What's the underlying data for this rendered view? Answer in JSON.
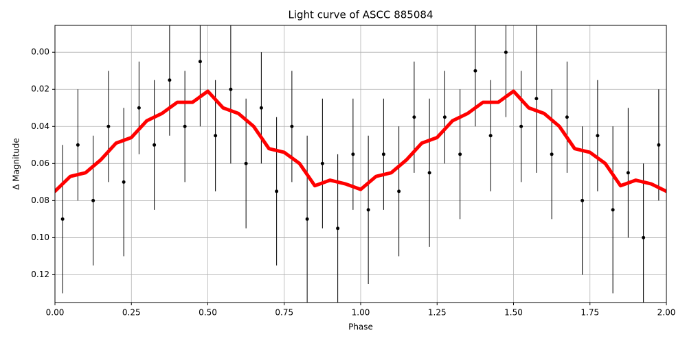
{
  "chart_data": {
    "type": "line",
    "title": "Light curve of ASCC 885084",
    "x_label": "Phase",
    "y_label": "Δ Magnitude",
    "xlim": [
      0,
      2
    ],
    "ylim": [
      -0.0145,
      0.135
    ],
    "y_inverted": true,
    "grid": true,
    "xticks": [
      {
        "value": 0,
        "label": "0.00"
      },
      {
        "value": 0.25,
        "label": "0.25"
      },
      {
        "value": 0.5,
        "label": "0.50"
      },
      {
        "value": 0.75,
        "label": "0.75"
      },
      {
        "value": 1,
        "label": "1.00"
      },
      {
        "value": 1.25,
        "label": "1.25"
      },
      {
        "value": 1.5,
        "label": "1.50"
      },
      {
        "value": 1.75,
        "label": "1.75"
      },
      {
        "value": 2,
        "label": "2.00"
      }
    ],
    "yticks": [
      {
        "value": 0,
        "label": "0.00"
      },
      {
        "value": 0.02,
        "label": "0.02"
      },
      {
        "value": 0.04,
        "label": "0.04"
      },
      {
        "value": 0.06,
        "label": "0.06"
      },
      {
        "value": 0.08,
        "label": "0.08"
      },
      {
        "value": 0.1,
        "label": "0.10"
      },
      {
        "value": 0.12,
        "label": "0.12"
      }
    ],
    "series": [
      {
        "kind": "errorbar",
        "color": "#000000",
        "x": [
          0.025,
          0.075,
          0.125,
          0.175,
          0.225,
          0.275,
          0.325,
          0.375,
          0.425,
          0.475,
          0.525,
          0.575,
          0.625,
          0.675,
          0.725,
          0.775,
          0.825,
          0.875,
          0.925,
          0.975,
          1.025,
          1.075,
          1.125,
          1.175,
          1.225,
          1.275,
          1.325,
          1.375,
          1.425,
          1.475,
          1.525,
          1.575,
          1.625,
          1.675,
          1.725,
          1.775,
          1.825,
          1.875,
          1.925,
          1.975
        ],
        "y": [
          0.09,
          0.05,
          0.08,
          0.04,
          0.07,
          0.03,
          0.05,
          0.015,
          0.04,
          0.005,
          0.045,
          0.02,
          0.06,
          0.03,
          0.075,
          0.04,
          0.09,
          0.06,
          0.095,
          0.055,
          0.085,
          0.055,
          0.075,
          0.035,
          0.065,
          0.035,
          0.055,
          0.01,
          0.045,
          0.0,
          0.04,
          0.025,
          0.055,
          0.035,
          0.08,
          0.045,
          0.085,
          0.065,
          0.1,
          0.05
        ],
        "err": [
          0.04,
          0.03,
          0.035,
          0.03,
          0.04,
          0.025,
          0.035,
          0.03,
          0.03,
          0.035,
          0.03,
          0.04,
          0.035,
          0.03,
          0.04,
          0.03,
          0.045,
          0.035,
          0.04,
          0.03,
          0.04,
          0.03,
          0.035,
          0.03,
          0.04,
          0.025,
          0.035,
          0.03,
          0.03,
          0.035,
          0.03,
          0.04,
          0.035,
          0.03,
          0.04,
          0.03,
          0.045,
          0.035,
          0.04,
          0.03
        ]
      },
      {
        "kind": "line",
        "color": "#ff0000",
        "x": [
          0,
          0.05,
          0.1,
          0.15,
          0.2,
          0.25,
          0.3,
          0.35,
          0.4,
          0.45,
          0.5,
          0.55,
          0.6,
          0.65,
          0.7,
          0.75,
          0.8,
          0.85,
          0.9,
          0.95,
          1,
          1.05,
          1.1,
          1.15,
          1.2,
          1.25,
          1.3,
          1.35,
          1.4,
          1.45,
          1.5,
          1.55,
          1.6,
          1.65,
          1.7,
          1.75,
          1.8,
          1.85,
          1.9,
          1.95,
          2
        ],
        "y": [
          0.075,
          0.067,
          0.065,
          0.058,
          0.049,
          0.046,
          0.037,
          0.033,
          0.027,
          0.027,
          0.021,
          0.03,
          0.033,
          0.04,
          0.052,
          0.054,
          0.06,
          0.072,
          0.069,
          0.071,
          0.074,
          0.067,
          0.065,
          0.058,
          0.049,
          0.046,
          0.037,
          0.033,
          0.027,
          0.027,
          0.021,
          0.03,
          0.033,
          0.04,
          0.052,
          0.054,
          0.06,
          0.072,
          0.069,
          0.071,
          0.075
        ]
      }
    ]
  }
}
